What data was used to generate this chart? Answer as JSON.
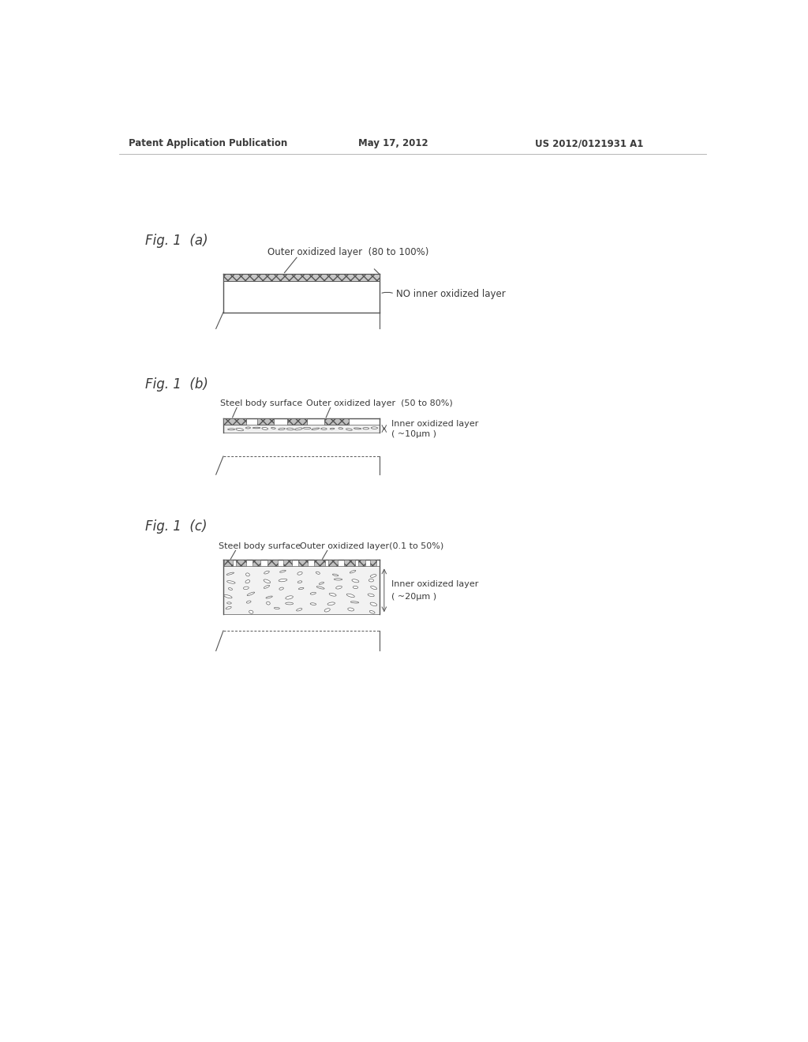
{
  "bg_color": "#ffffff",
  "header_left": "Patent Application Publication",
  "header_center": "May 17, 2012",
  "header_right": "US 2012/0121931 A1",
  "fig_a_label": "Fig. 1  (a)",
  "fig_b_label": "Fig. 1  (b)",
  "fig_c_label": "Fig. 1  (c)",
  "fig_a_annot1": "Outer oxidized layer  (80 to 100%)",
  "fig_a_annot2": "NO inner oxidized layer",
  "fig_b_annot1": "Steel body surface",
  "fig_b_annot2": "Outer oxidized layer  (50 to 80%)",
  "fig_b_annot3": "Inner oxidized layer",
  "fig_b_annot4": "( ~10μm )",
  "fig_c_annot1": "Steel body surface",
  "fig_c_annot2": "Outer oxidized layer(0.1 to 50%)",
  "fig_c_annot3": "Inner oxidized layer",
  "fig_c_annot4": "( ~20μm )",
  "text_color": "#3a3a3a",
  "line_color": "#555555",
  "hatch_color": "#888888",
  "diagram_line_color": "#555555"
}
